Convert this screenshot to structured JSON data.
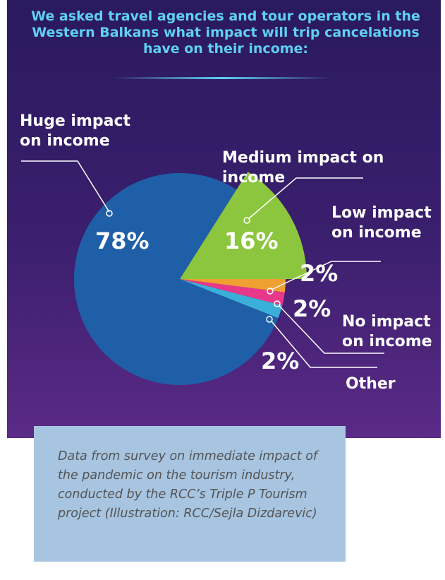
{
  "title": "We asked travel agencies and tour operators in the Western Balkans what impact will trip cancelations have on their income:",
  "chart_data": {
    "type": "pie",
    "categories": [
      "Huge impact on income",
      "Medium impact on income",
      "Low impact on income",
      "No impact on income",
      "Other"
    ],
    "values": [
      78,
      16,
      2,
      2,
      2
    ],
    "value_labels": [
      "78%",
      "16%",
      "2%",
      "2%",
      "2%"
    ],
    "colors": [
      "#1f5fa8",
      "#8cc63f",
      "#f0a030",
      "#e8388a",
      "#3ab0d8"
    ]
  },
  "caption": "Data from survey on immediate impact of the pandemic on the tourism industry, conducted by the RCC’s Triple P Tourism project (Illustration: RCC/Sejla Dizdarevic)"
}
